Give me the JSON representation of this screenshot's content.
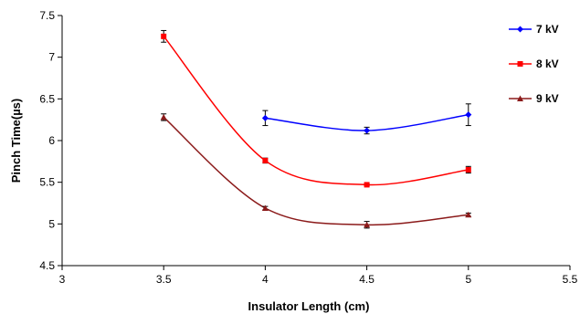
{
  "chart_data": {
    "type": "line",
    "title": "",
    "xlabel": "Insulator Length (cm)",
    "ylabel": "Pinch Time(µs)",
    "xlim": [
      3,
      5.5
    ],
    "ylim": [
      4.5,
      7.5
    ],
    "xticks": [
      "3",
      "3.5",
      "4",
      "4.5",
      "5",
      "5.5"
    ],
    "yticks": [
      "4.5",
      "5",
      "5.5",
      "6",
      "6.5",
      "7",
      "7.5"
    ],
    "grid": false,
    "legend_position": "right",
    "series": [
      {
        "name": "7 kV",
        "color": "#0000ff",
        "marker": "diamond",
        "x": [
          4,
          4.5,
          5
        ],
        "y": [
          6.27,
          6.12,
          6.31
        ],
        "error": [
          0.09,
          0.04,
          0.13
        ]
      },
      {
        "name": "8 kV",
        "color": "#ff0000",
        "marker": "square",
        "x": [
          3.5,
          4,
          4.5,
          5
        ],
        "y": [
          7.25,
          5.76,
          5.47,
          5.65
        ],
        "error": [
          0.07,
          0.03,
          0.01,
          0.04
        ]
      },
      {
        "name": "9 kV",
        "color": "#8b1a1a",
        "marker": "triangle",
        "x": [
          3.5,
          4,
          4.5,
          5
        ],
        "y": [
          6.28,
          5.19,
          4.99,
          5.11
        ],
        "error": [
          0.04,
          0.02,
          0.04,
          0.02
        ]
      }
    ]
  }
}
